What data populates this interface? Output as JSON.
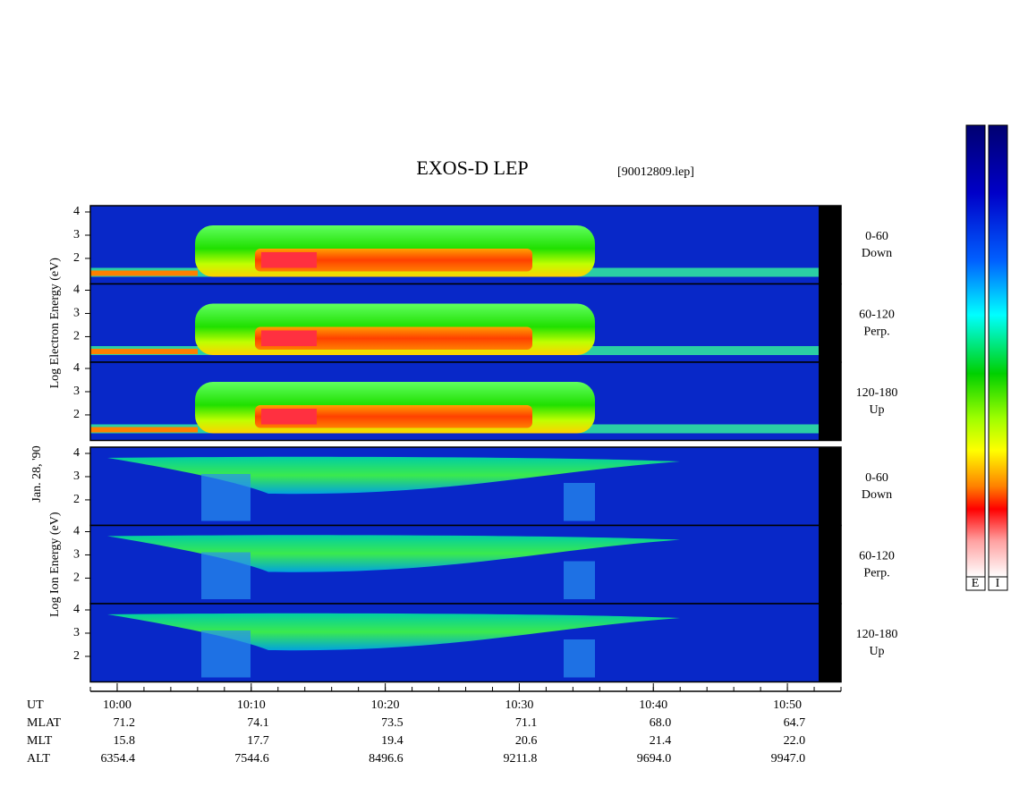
{
  "chart_data": {
    "type": "spectrogram",
    "title": "EXOS-D LEP",
    "subtitle": "[90012809.lep]",
    "date_label": "Jan. 28, '90",
    "groups": [
      {
        "ylabel": "Log Electron Energy (eV)",
        "kind": "electron",
        "panels": [
          {
            "angle": "0-60",
            "direction": "Down"
          },
          {
            "angle": "60-120",
            "direction": "Perp."
          },
          {
            "angle": "120-180",
            "direction": "Up"
          }
        ]
      },
      {
        "ylabel": "Log Ion Energy (eV)",
        "kind": "ion",
        "panels": [
          {
            "angle": "0-60",
            "direction": "Down"
          },
          {
            "angle": "60-120",
            "direction": "Perp."
          },
          {
            "angle": "120-180",
            "direction": "Up"
          }
        ]
      }
    ],
    "ylim": [
      0.9,
      4.27
    ],
    "yticks": [
      2,
      3,
      4
    ],
    "xlim": [
      598,
      654
    ],
    "x_label": "UT",
    "xticks": [
      {
        "value": 600,
        "label": "10:00"
      },
      {
        "value": 610,
        "label": "10:10"
      },
      {
        "value": 620,
        "label": "10:20"
      },
      {
        "value": 630,
        "label": "10:30"
      },
      {
        "value": 640,
        "label": "10:40"
      },
      {
        "value": 650,
        "label": "10:50"
      }
    ],
    "orbit": [
      {
        "name": "MLAT",
        "values": [
          "71.2",
          "74.1",
          "73.5",
          "71.1",
          "68.0",
          "64.7"
        ]
      },
      {
        "name": "MLT",
        "values": [
          "15.8",
          "17.7",
          "19.4",
          "20.6",
          "21.4",
          "22.0"
        ]
      },
      {
        "name": "ALT",
        "values": [
          "6354.4",
          "7544.6",
          "8496.6",
          "9211.8",
          "9694.0",
          "9947.0"
        ]
      }
    ],
    "colorbar_labels": [
      "E",
      "I"
    ]
  }
}
